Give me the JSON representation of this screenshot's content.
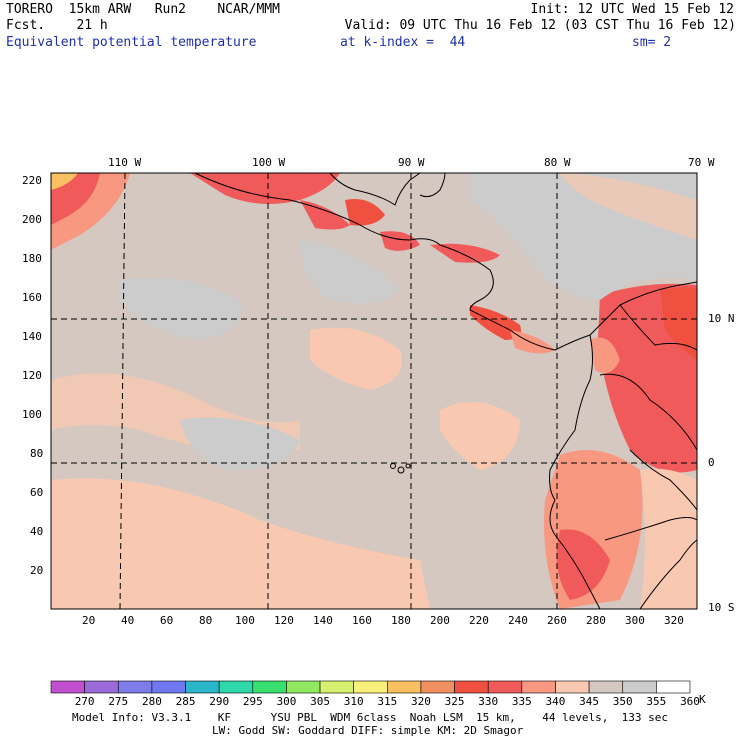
{
  "header": {
    "line1_left": "TORERO  15km ARW   Run2    NCAR/MMM",
    "line1_right": "Init: 12 UTC Wed 15 Feb 12",
    "line2_left": "Fcst.    21 h",
    "line2_right": "Valid: 09 UTC Thu 16 Feb 12 (03 CST Thu 16 Feb 12)",
    "field_name": "Equivalent potential temperature",
    "level": "at k-index =  44",
    "smoothing": "sm= 2"
  },
  "map": {
    "lon_labels": [
      "110 W",
      "100 W",
      "90 W",
      "80 W",
      "70 W"
    ],
    "lat_labels": [
      "10 N",
      "0",
      "10 S"
    ],
    "y_ticks": [
      "220",
      "200",
      "180",
      "160",
      "140",
      "120",
      "100",
      "80",
      "60",
      "40",
      "20"
    ],
    "x_ticks": [
      "20",
      "40",
      "60",
      "80",
      "100",
      "120",
      "140",
      "160",
      "180",
      "200",
      "220",
      "240",
      "260",
      "280",
      "300",
      "320"
    ]
  },
  "colorbar": {
    "labels": [
      "270",
      "275",
      "280",
      "285",
      "290",
      "295",
      "300",
      "305",
      "310",
      "315",
      "320",
      "325",
      "330",
      "335",
      "340",
      "345",
      "350",
      "355",
      "360"
    ],
    "unit": "K",
    "colors": [
      "#c050d0",
      "#9a6bd8",
      "#7d7ce8",
      "#6f78f0",
      "#2ab6c8",
      "#2fd8a8",
      "#38e070",
      "#8ee860",
      "#d8f070",
      "#f8f07a",
      "#f8c060",
      "#f09060",
      "#f05040",
      "#f05a5a",
      "#f89880",
      "#f8c8b0",
      "#d4c8c0",
      "#cccccc",
      "#ffffff"
    ]
  },
  "footer": {
    "line1": "Model Info: V3.3.1    KF      YSU PBL  WDM 6class  Noah LSM  15 km,    44 levels,  133 sec",
    "line2": "LW: Godd SW: Goddard DIFF: simple KM: 2D Smagor"
  }
}
